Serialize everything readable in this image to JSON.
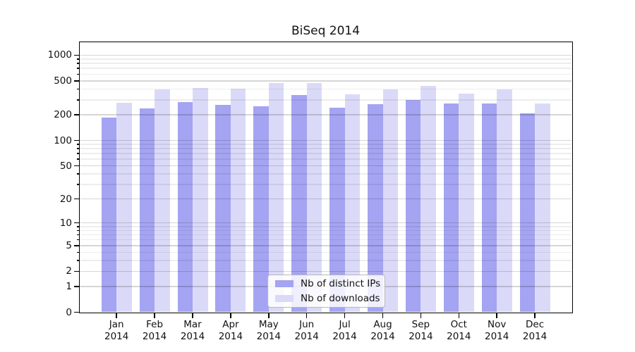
{
  "figure": {
    "title": "BiSeq 2014",
    "background_color": "#ffffff",
    "plot_border_color": "#000000"
  },
  "chart_data": {
    "type": "bar",
    "title": "BiSeq 2014",
    "xlabel": "",
    "ylabel": "",
    "y_scale": "log(1+x) pseudo-log",
    "ylim": [
      0,
      1200
    ],
    "grid": "horizontal major and minor gridlines, light gray, drawn over translucent bars",
    "legend_position": "inside plot, bottom center",
    "y_ticks": [
      0,
      1,
      2,
      5,
      10,
      20,
      50,
      100,
      200,
      500,
      1000
    ],
    "y_minor_ticks": [
      3,
      4,
      6,
      7,
      8,
      9,
      30,
      40,
      60,
      70,
      80,
      90,
      300,
      400,
      600,
      700,
      800,
      900
    ],
    "categories": [
      {
        "label": "Jan",
        "sublabel": "2014"
      },
      {
        "label": "Feb",
        "sublabel": "2014"
      },
      {
        "label": "Mar",
        "sublabel": "2014"
      },
      {
        "label": "Apr",
        "sublabel": "2014"
      },
      {
        "label": "May",
        "sublabel": "2014"
      },
      {
        "label": "Jun",
        "sublabel": "2014"
      },
      {
        "label": "Jul",
        "sublabel": "2014"
      },
      {
        "label": "Aug",
        "sublabel": "2014"
      },
      {
        "label": "Sep",
        "sublabel": "2014"
      },
      {
        "label": "Oct",
        "sublabel": "2014"
      },
      {
        "label": "Nov",
        "sublabel": "2014"
      },
      {
        "label": "Dec",
        "sublabel": "2014"
      }
    ],
    "series": [
      {
        "key": "distinct-ips",
        "name": "Nb of distinct IPs",
        "color": "#a4a4f2",
        "values": [
          185,
          237,
          283,
          261,
          253,
          342,
          244,
          266,
          298,
          270,
          272,
          210
        ]
      },
      {
        "key": "downloads",
        "name": "Nb of downloads",
        "color": "#dadaf8",
        "values": [
          279,
          400,
          414,
          405,
          475,
          475,
          349,
          399,
          435,
          352,
          398,
          271
        ]
      }
    ]
  }
}
